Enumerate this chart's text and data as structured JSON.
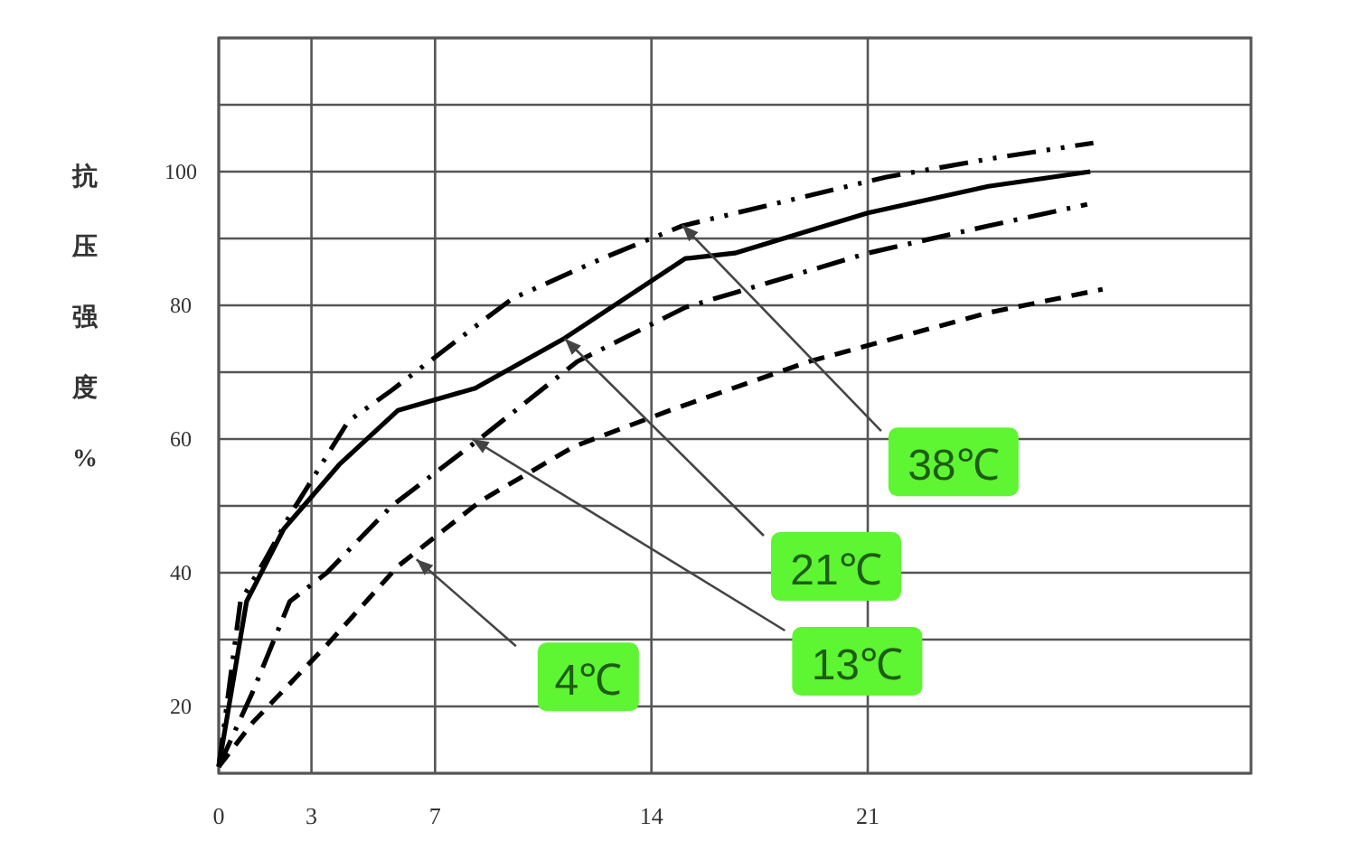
{
  "chart_data": {
    "type": "line",
    "ylabel": "抗压强度%",
    "xlim": [
      0,
      33.4
    ],
    "ylim": [
      10,
      120
    ],
    "xticks": [
      0,
      3,
      7,
      14,
      21
    ],
    "yticks": [
      {
        "value": 10,
        "label": null
      },
      20,
      {
        "value": 30,
        "label": null
      },
      40,
      {
        "value": 50,
        "label": null
      },
      60,
      {
        "value": 70,
        "label": null
      },
      80,
      {
        "value": 90,
        "label": null
      },
      100,
      {
        "value": 110,
        "label": null
      },
      {
        "value": 120,
        "label": null
      }
    ],
    "grid": true,
    "series": [
      {
        "color": "#000000",
        "line_style": "dashdotdot",
        "x": [
          0,
          0.7,
          1.5,
          2.3,
          4.2,
          5.6,
          8.2,
          9.5,
          12.4,
          15,
          21.6,
          24.9,
          28.3
        ],
        "values": [
          11,
          35.7,
          41.9,
          48.6,
          62.7,
          67.3,
          76.5,
          81,
          87,
          91.9,
          99.2,
          101.9,
          104.3
        ]
      },
      {
        "color": "#000000",
        "line_style": "solid",
        "x": [
          0,
          0.9,
          2.1,
          3.9,
          5.8,
          8.3,
          11.2,
          15.1,
          16.7,
          21,
          24.9,
          28.2
        ],
        "values": [
          11,
          35.7,
          46.5,
          56.2,
          64.3,
          67.6,
          75.1,
          87,
          87.8,
          93.8,
          97.8,
          100
        ]
      },
      {
        "color": "#000000",
        "line_style": "dashdot",
        "x": [
          0,
          1.1,
          2.3,
          3.5,
          5.6,
          8.3,
          11.6,
          15.1,
          16.7,
          21,
          24.9,
          28.1
        ],
        "values": [
          11,
          22.2,
          35.7,
          40,
          50,
          59.5,
          71.6,
          79.7,
          81.9,
          87.8,
          91.9,
          95.1
        ]
      },
      {
        "color": "#000000",
        "line_style": "dashed",
        "x": [
          0,
          1.1,
          3.5,
          5.8,
          8.5,
          11.5,
          14.6,
          19.1,
          24.9,
          28.6
        ],
        "values": [
          11,
          17.6,
          29.2,
          41,
          50.8,
          58.9,
          64.3,
          71.6,
          78.9,
          82.4
        ]
      }
    ],
    "annotations": [
      {
        "text": "38℃",
        "x": 15,
        "y": 92
      },
      {
        "text": "21℃",
        "x": 11.2,
        "y": 75
      },
      {
        "text": "13℃",
        "x": 8.2,
        "y": 60
      },
      {
        "text": "4℃",
        "x": 6.4,
        "y": 42
      }
    ]
  }
}
